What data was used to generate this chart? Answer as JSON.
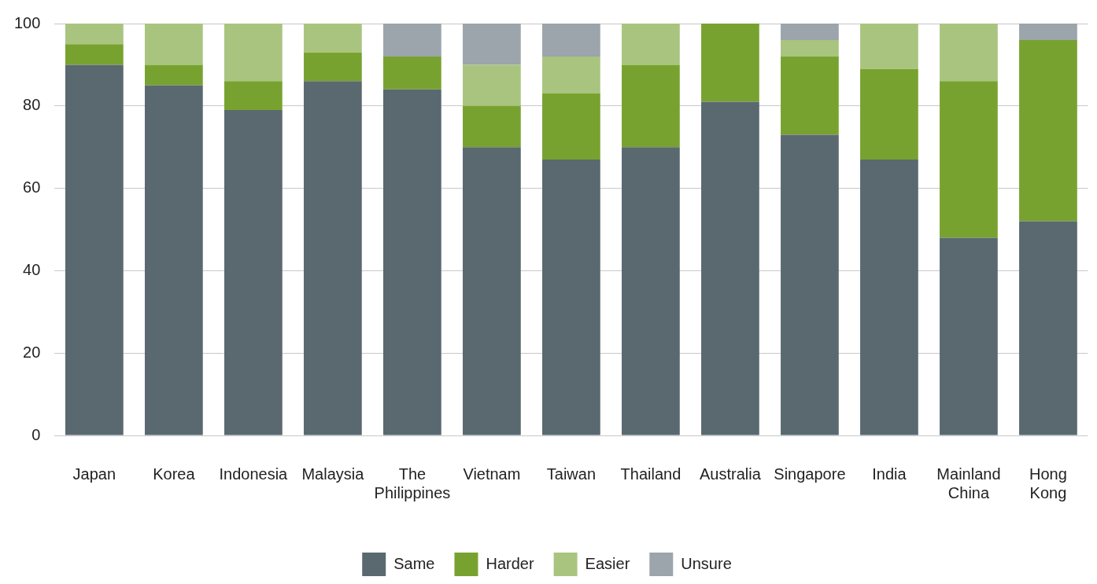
{
  "chart_data": {
    "type": "bar",
    "stacked": true,
    "categories": [
      "Japan",
      "Korea",
      "Indonesia",
      "Malaysia",
      "The Philippines",
      "Vietnam",
      "Taiwan",
      "Thailand",
      "Australia",
      "Singapore",
      "India",
      "Mainland China",
      "Hong Kong"
    ],
    "series": [
      {
        "name": "Same",
        "color": "#5a6870",
        "values": [
          90,
          85,
          79,
          86,
          84,
          70,
          67,
          70,
          81,
          73,
          67,
          48,
          52
        ]
      },
      {
        "name": "Harder",
        "color": "#78a22f",
        "values": [
          5,
          5,
          7,
          7,
          8,
          10,
          16,
          20,
          19,
          19,
          22,
          38,
          44
        ]
      },
      {
        "name": "Easier",
        "color": "#a9c47f",
        "values": [
          5,
          10,
          14,
          7,
          0,
          10,
          9,
          10,
          0,
          4,
          11,
          14,
          0
        ]
      },
      {
        "name": "Unsure",
        "color": "#9ba5ab",
        "values": [
          0,
          0,
          0,
          0,
          8,
          10,
          8,
          0,
          0,
          4,
          0,
          0,
          4
        ]
      }
    ],
    "ylim": [
      0,
      100
    ],
    "yticks": [
      0,
      20,
      40,
      60,
      80,
      100
    ],
    "grid": "y",
    "legend": "bottom"
  }
}
